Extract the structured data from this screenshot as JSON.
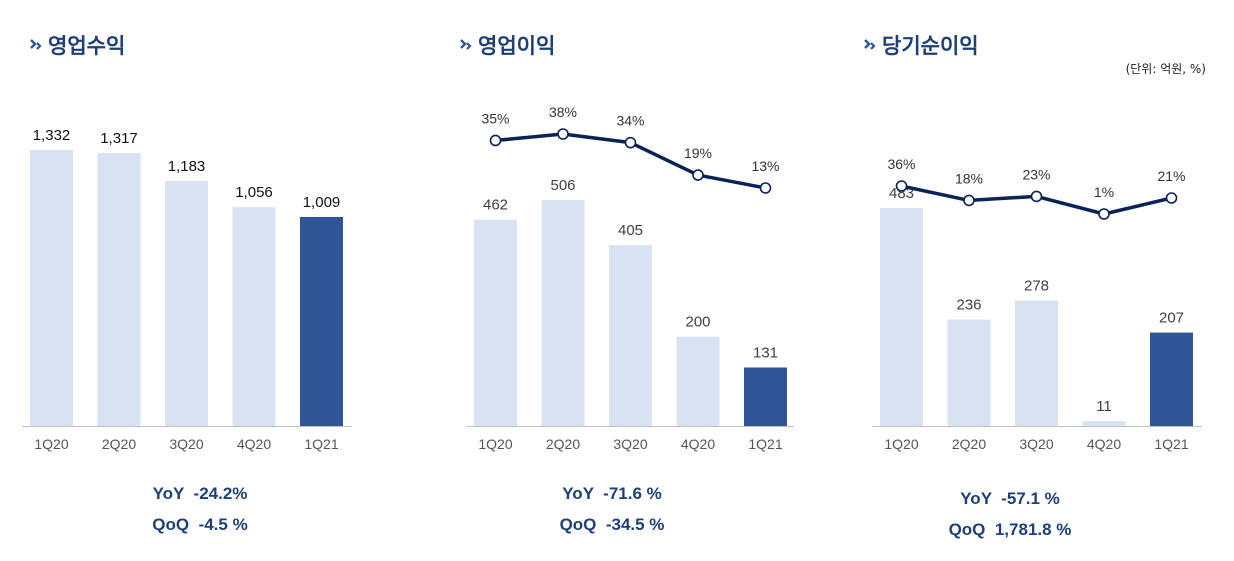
{
  "colors": {
    "title": "#1f3f77",
    "bar_light": "#d9e2f3",
    "bar_dark": "#2f5597",
    "line": "#0b2258",
    "stat": "#1f3f77"
  },
  "panels": [
    {
      "title": "영업수익",
      "icon": "double-chevron-icon",
      "stats": [
        "YoY  -24.2%",
        "QoQ  -4.5 %"
      ]
    },
    {
      "title": "영업이익",
      "icon": "double-chevron-icon",
      "stats": [
        "YoY  -71.6 %",
        "QoQ  -34.5 %"
      ]
    },
    {
      "title": "당기순이익",
      "icon": "double-chevron-icon",
      "unit": "(단위: 억원, %)",
      "stats": [
        "YoY  -57.1 %",
        "QoQ  1,781.8 %"
      ]
    }
  ],
  "chart_data": [
    {
      "type": "bar",
      "categories": [
        "1Q20",
        "2Q20",
        "3Q20",
        "4Q20",
        "1Q21"
      ],
      "values": [
        1332,
        1317,
        1183,
        1056,
        1009
      ],
      "value_labels": [
        "1,332",
        "1,317",
        "1,183",
        "1,056",
        "1,009"
      ],
      "highlight_index": 4,
      "ylim": [
        0,
        1400
      ]
    },
    {
      "type": "bar",
      "categories": [
        "1Q20",
        "2Q20",
        "3Q20",
        "4Q20",
        "1Q21"
      ],
      "values": [
        462,
        506,
        405,
        200,
        131
      ],
      "value_labels": [
        "462",
        "506",
        "405",
        "200",
        "131"
      ],
      "highlight_index": 4,
      "ylim": [
        0,
        700
      ],
      "line": {
        "values": [
          35,
          38,
          34,
          19,
          13
        ],
        "labels": [
          "35%",
          "38%",
          "34%",
          "19%",
          "13%"
        ],
        "ylim": [
          0,
          40
        ]
      }
    },
    {
      "type": "bar",
      "categories": [
        "1Q20",
        "2Q20",
        "3Q20",
        "4Q20",
        "1Q21"
      ],
      "values": [
        483,
        236,
        278,
        11,
        207
      ],
      "value_labels": [
        "483",
        "236",
        "278",
        "11",
        "207"
      ],
      "highlight_index": 4,
      "ylim": [
        0,
        590
      ],
      "line": {
        "values": [
          36,
          18,
          23,
          1,
          21
        ],
        "labels": [
          "36%",
          "18%",
          "23%",
          "1%",
          "21%"
        ],
        "ylim": [
          0,
          36
        ]
      }
    }
  ]
}
